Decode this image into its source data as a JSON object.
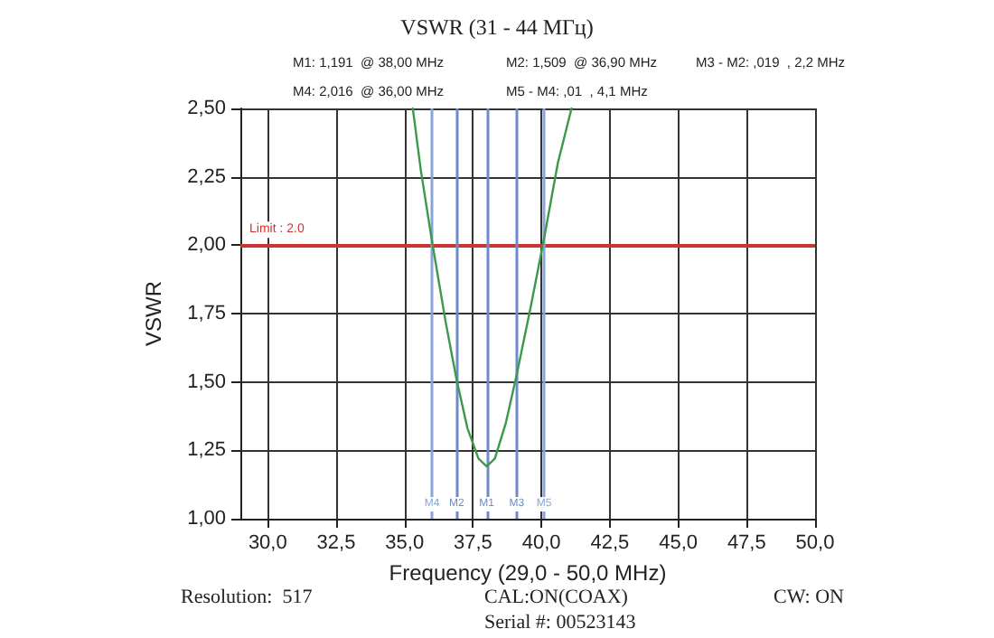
{
  "chart_data": {
    "type": "line",
    "title": "VSWR (31 - 44 МГц)",
    "xlabel": "Frequency (29,0 - 50,0 MHz)",
    "ylabel": "VSWR",
    "x": [
      35.3,
      35.6,
      36.0,
      36.5,
      36.9,
      37.3,
      37.7,
      38.0,
      38.3,
      38.7,
      39.1,
      39.6,
      40.1,
      40.6,
      41.1
    ],
    "series": [
      {
        "color": "#3a9a4a",
        "values": [
          2.5,
          2.27,
          2.016,
          1.72,
          1.509,
          1.33,
          1.22,
          1.191,
          1.22,
          1.35,
          1.528,
          1.77,
          2.026,
          2.3,
          2.5
        ]
      }
    ],
    "xlim": [
      29,
      50
    ],
    "xticks": [
      {
        "value": 30,
        "label": "30,0"
      },
      {
        "value": 32.5,
        "label": "32,5"
      },
      {
        "value": 35,
        "label": "35,0"
      },
      {
        "value": 37.5,
        "label": "37,5"
      },
      {
        "value": 40,
        "label": "40,0"
      },
      {
        "value": 42.5,
        "label": "42,5"
      },
      {
        "value": 45,
        "label": "45,0"
      },
      {
        "value": 47.5,
        "label": "47,5"
      },
      {
        "value": 50,
        "label": "50,0"
      }
    ],
    "ylim": [
      1,
      2.5
    ],
    "yticks": [
      {
        "value": 1,
        "label": "1,00"
      },
      {
        "value": 1.25,
        "label": "1,25"
      },
      {
        "value": 1.5,
        "label": "1,50"
      },
      {
        "value": 1.75,
        "label": "1,75"
      },
      {
        "value": 2,
        "label": "2,00"
      },
      {
        "value": 2.25,
        "label": "2,25"
      },
      {
        "value": 2.5,
        "label": "2,50"
      }
    ],
    "grid": true,
    "marker": "none",
    "line_style": "solid",
    "ref_lines": [
      {
        "axis": "y",
        "value": 2.0,
        "label": "Limit : 2.0",
        "color": "#cc3333"
      },
      {
        "axis": "x",
        "value": 36.0,
        "label": "M4",
        "color": "#8aa4d8"
      },
      {
        "axis": "x",
        "value": 36.9,
        "label": "M2",
        "color": "#6f8cc8"
      },
      {
        "axis": "x",
        "value": 38.0,
        "label": "M1",
        "color": "#6f8cc8"
      },
      {
        "axis": "x",
        "value": 39.1,
        "label": "M3",
        "color": "#6f8cc8"
      },
      {
        "axis": "x",
        "value": 40.1,
        "label": "M5",
        "color": "#8aa4d8"
      }
    ],
    "annotations": [
      "M1: 1,191  @ 38,00 MHz",
      "M2: 1,509  @ 36,90 MHz",
      "M3 - M2: ,019  , 2,2 MHz",
      "M4: 2,016  @ 36,00 MHz",
      "M5 - M4: ,01  , 4,1 MHz",
      "Resolution:  517",
      "CAL:ON(COAX)",
      "CW: ON",
      "Serial #: 00523143"
    ]
  }
}
